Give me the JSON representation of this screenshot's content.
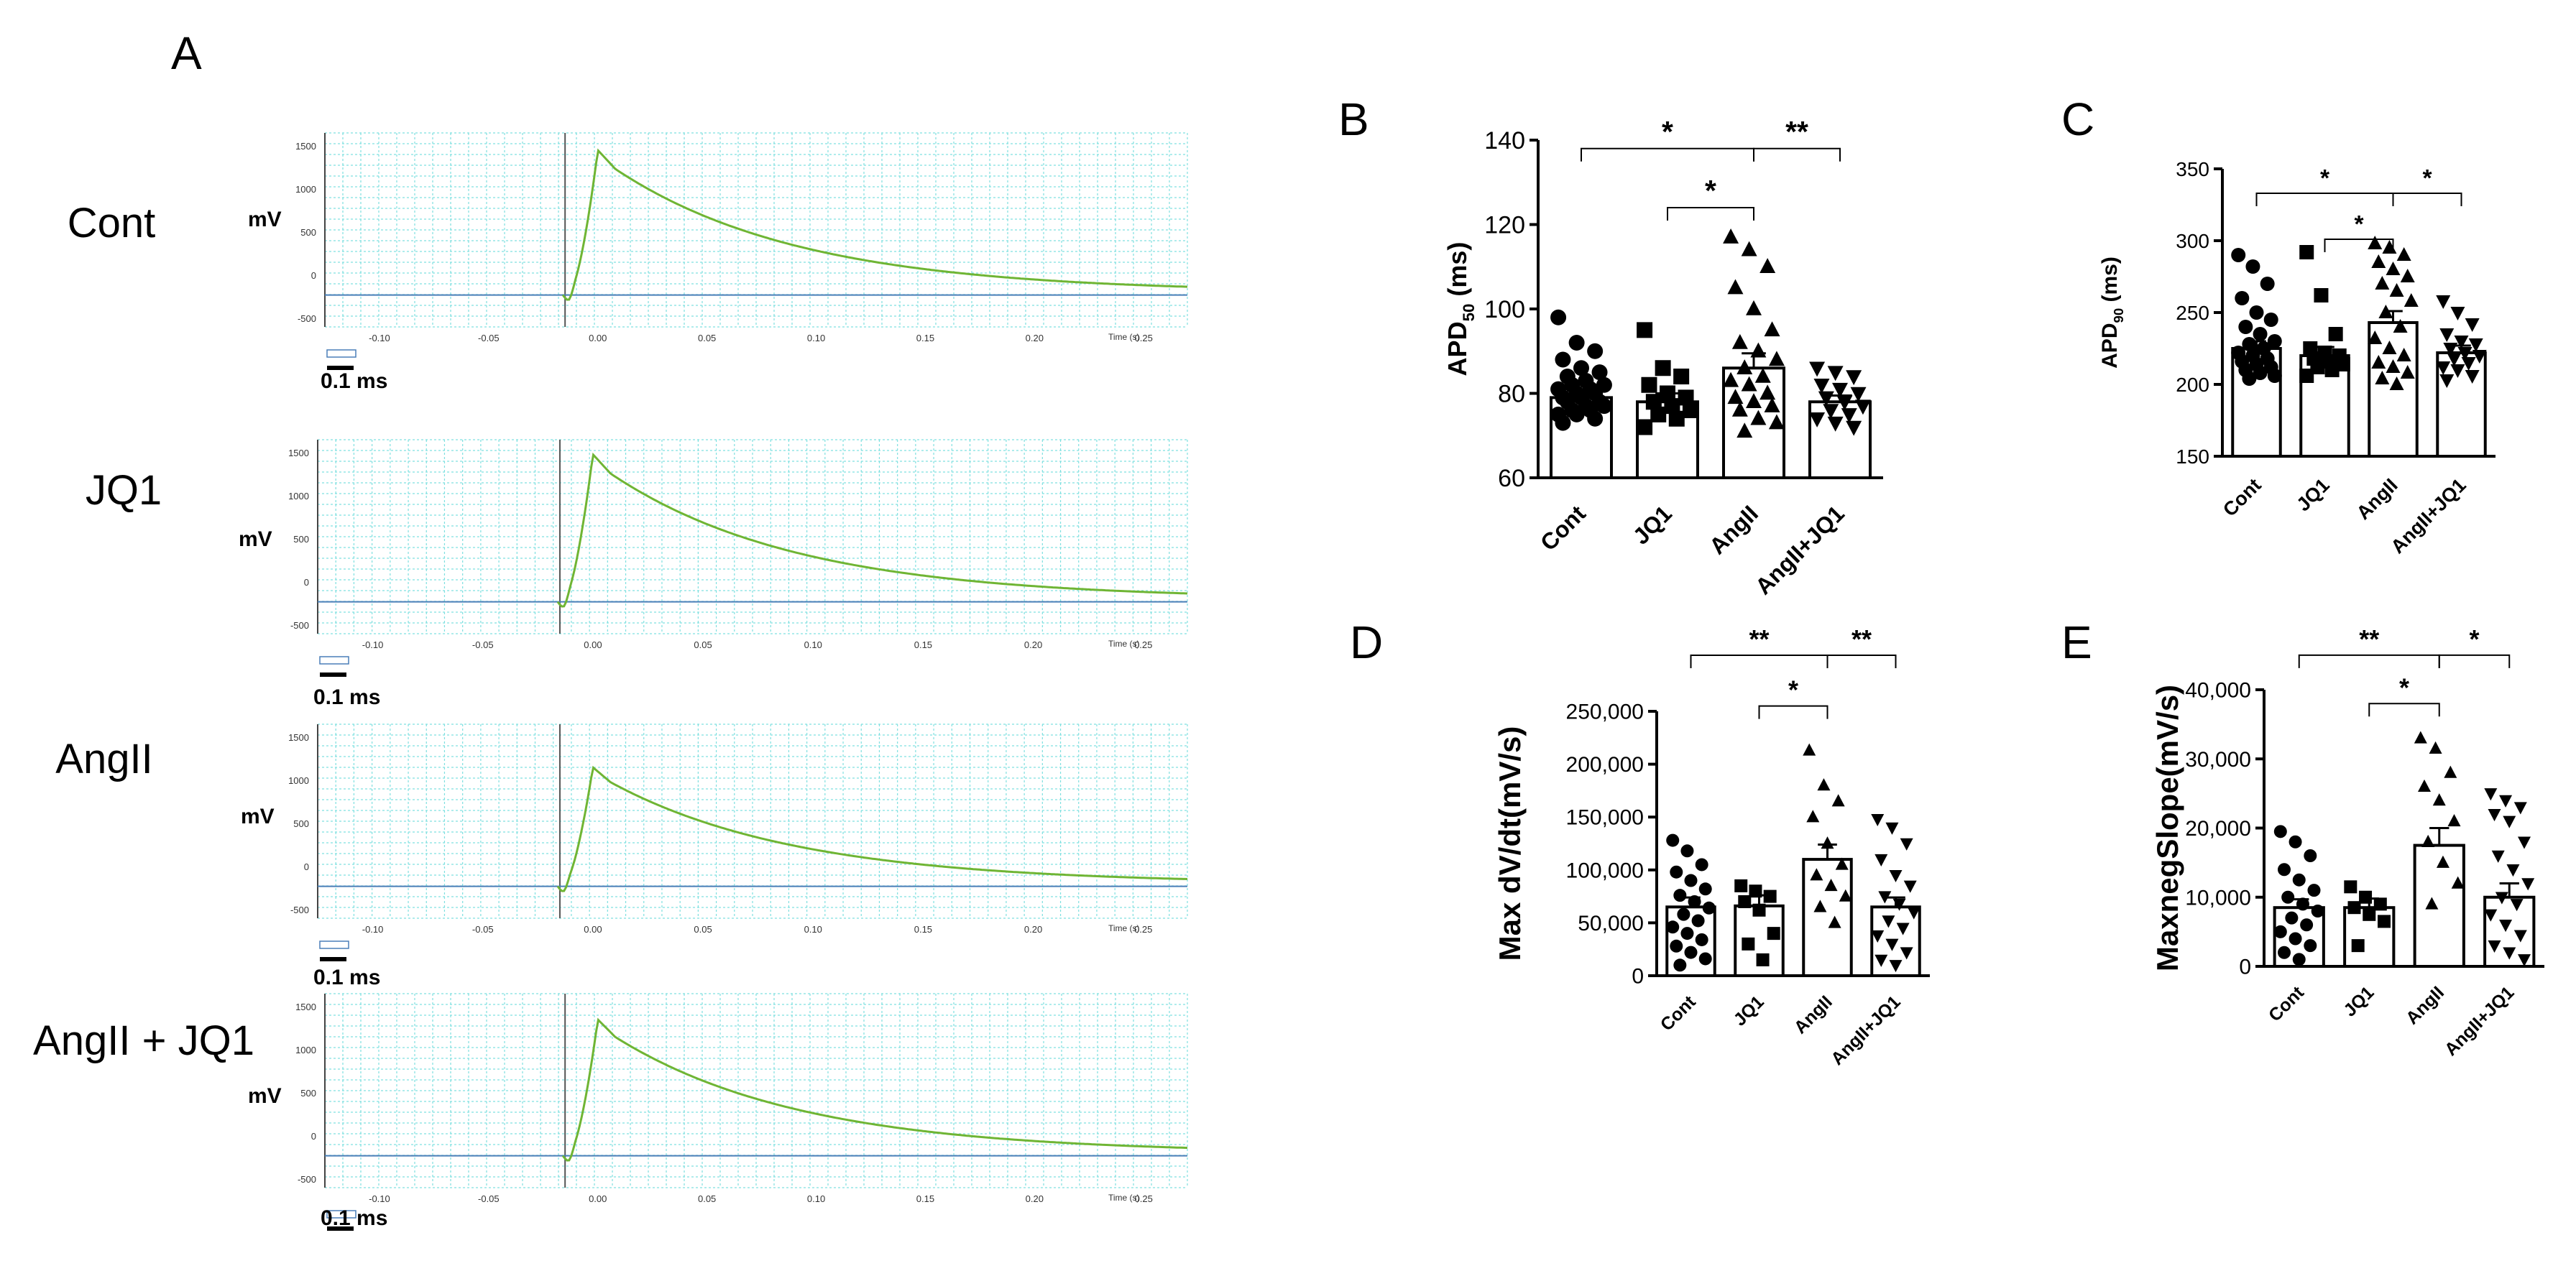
{
  "panels": {
    "A": "A",
    "B": "B",
    "C": "C",
    "D": "D",
    "E": "E"
  },
  "traces": [
    {
      "label": "Cont",
      "ylabel": "mV",
      "yticks": [
        "1500",
        "1000",
        "500",
        "0",
        "-500"
      ],
      "peak": 1450,
      "scale": "0.1 ms"
    },
    {
      "label": "JQ1",
      "ylabel": "mV",
      "yticks": [
        "1500",
        "1000",
        "500",
        "0",
        "-500"
      ],
      "peak": 1480,
      "scale": "0.1 ms"
    },
    {
      "label": "AngII",
      "ylabel": "mV",
      "yticks": [
        "1500",
        "1000",
        "500",
        "0",
        "-500"
      ],
      "peak": 1150,
      "scale": "0.1 ms"
    },
    {
      "label": "AngII + JQ1",
      "ylabel": "mV",
      "yticks": [
        "1500",
        "1000",
        "500",
        "0",
        "-500"
      ],
      "peak": 1350,
      "scale": "0.1 ms"
    }
  ],
  "trace_axis": {
    "xticks": [
      "-0.10",
      "-0.05",
      "0.00",
      "0.05",
      "0.10",
      "0.15",
      "0.20",
      "0.25"
    ],
    "xtick_values": [
      -0.1,
      -0.05,
      0.0,
      0.05,
      0.1,
      0.15,
      0.2,
      0.25
    ],
    "xlim": [
      -0.125,
      0.27
    ],
    "ylim": [
      -600,
      1650
    ],
    "xlabel": "Time (s)",
    "baseline": -230,
    "trace_color": "#6fb534",
    "baseline_color": "#4a7fb8",
    "grid_color": "#7fe0e0"
  },
  "chart_data": [
    {
      "panel": "B",
      "type": "bar",
      "categories": [
        "Cont",
        "JQ1",
        "AngII",
        "AngII+JQ1"
      ],
      "values": [
        79,
        78,
        86,
        78
      ],
      "errors": [
        1.5,
        2,
        3.5,
        1.5
      ],
      "ylabel_main": "APD",
      "ylabel_sub": "50",
      "ylabel_tail": " (ms)",
      "ylim": [
        60,
        140
      ],
      "yticks": [
        "60",
        "80",
        "100",
        "120",
        "140"
      ],
      "ytick_values": [
        60,
        80,
        100,
        120,
        140
      ],
      "markers": [
        "circle",
        "square",
        "triangle",
        "tri-down"
      ],
      "points": [
        [
          98,
          92,
          90,
          88,
          86,
          85,
          84,
          83,
          82,
          82,
          81,
          81,
          80,
          80,
          79,
          79,
          78,
          78,
          77,
          77,
          76,
          76,
          75,
          75,
          74,
          73
        ],
        [
          95,
          86,
          84,
          82,
          80,
          79,
          78,
          77,
          76,
          75,
          74,
          72
        ],
        [
          117,
          114,
          110,
          105,
          100,
          95,
          92,
          90,
          88,
          86,
          84,
          83,
          82,
          80,
          79,
          78,
          77,
          76,
          74,
          73,
          71
        ],
        [
          86,
          85,
          84,
          82,
          81,
          80,
          79,
          78,
          77,
          76,
          75,
          74,
          73,
          72
        ]
      ],
      "brackets": [
        {
          "from": 0,
          "to": 2,
          "level": 138,
          "label": "*"
        },
        {
          "from": 2,
          "to": 3,
          "level": 138,
          "label": "**"
        },
        {
          "from": 1,
          "to": 2,
          "level": 124,
          "label": "*"
        }
      ]
    },
    {
      "panel": "C",
      "type": "bar",
      "categories": [
        "Cont",
        "JQ1",
        "AngII",
        "AngII+JQ1"
      ],
      "values": [
        225,
        220,
        243,
        222
      ],
      "errors": [
        5,
        6,
        8,
        5
      ],
      "ylabel_main": "APD",
      "ylabel_sub": "90",
      "ylabel_tail": " (ms)",
      "ylim": [
        150,
        350
      ],
      "yticks": [
        "150",
        "200",
        "250",
        "300",
        "350"
      ],
      "ytick_values": [
        150,
        200,
        250,
        300,
        350
      ],
      "markers": [
        "circle",
        "square",
        "triangle",
        "tri-down"
      ],
      "points": [
        [
          290,
          282,
          270,
          260,
          250,
          245,
          240,
          235,
          230,
          228,
          225,
          222,
          220,
          218,
          216,
          214,
          212,
          210,
          208,
          206,
          204
        ],
        [
          292,
          262,
          235,
          225,
          222,
          220,
          218,
          216,
          214,
          212,
          210,
          206
        ],
        [
          298,
          295,
          290,
          285,
          280,
          275,
          270,
          265,
          258,
          250,
          240,
          232,
          225,
          220,
          215,
          212,
          208,
          204,
          200
        ],
        [
          258,
          250,
          242,
          235,
          230,
          228,
          225,
          222,
          220,
          218,
          215,
          212,
          210,
          206,
          203
        ]
      ],
      "brackets": [
        {
          "from": 0,
          "to": 2,
          "level": 333,
          "label": "*"
        },
        {
          "from": 2,
          "to": 3,
          "level": 333,
          "label": "*"
        },
        {
          "from": 1,
          "to": 2,
          "level": 301,
          "label": "*"
        }
      ]
    },
    {
      "panel": "D",
      "type": "bar",
      "categories": [
        "Cont",
        "JQ1",
        "AngII",
        "AngII+JQ1"
      ],
      "values": [
        65000,
        66000,
        110000,
        65000
      ],
      "errors": [
        9000,
        10000,
        14000,
        9000
      ],
      "ylabel_main": "Max dV/dt(mV/s)",
      "ylabel_sub": "",
      "ylabel_tail": "",
      "ylim": [
        0,
        250000
      ],
      "yticks": [
        "0",
        "50,000",
        "100,000",
        "150,000",
        "200,000",
        "250,000"
      ],
      "ytick_values": [
        0,
        50000,
        100000,
        150000,
        200000,
        250000
      ],
      "markers": [
        "circle",
        "square",
        "triangle",
        "tri-down"
      ],
      "points": [
        [
          128000,
          118000,
          105000,
          98000,
          90000,
          82000,
          76000,
          70000,
          64000,
          58000,
          52000,
          46000,
          40000,
          34000,
          28000,
          22000,
          16000,
          10000
        ],
        [
          85000,
          80000,
          75000,
          70000,
          62000,
          40000,
          30000,
          15000
        ],
        [
          213000,
          180000,
          165000,
          150000,
          125000,
          105000,
          95000,
          85000,
          75000,
          65000,
          50000
        ],
        [
          148000,
          140000,
          125000,
          110000,
          95000,
          85000,
          75000,
          68000,
          60000,
          52000,
          45000,
          38000,
          30000,
          22000,
          15000,
          10000
        ]
      ],
      "brackets": [
        {
          "from": 0,
          "to": 2,
          "level": 303000,
          "label": "**"
        },
        {
          "from": 2,
          "to": 3,
          "level": 303000,
          "label": "**"
        },
        {
          "from": 1,
          "to": 2,
          "level": 255000,
          "label": "*"
        }
      ]
    },
    {
      "panel": "E",
      "type": "bar",
      "categories": [
        "Cont",
        "JQ1",
        "AngII",
        "AngII+JQ1"
      ],
      "values": [
        8500,
        8500,
        17500,
        10000
      ],
      "errors": [
        1200,
        1300,
        2500,
        2000
      ],
      "ylabel_main": "MaxnegSlope(mV/s)",
      "ylabel_sub": "",
      "ylabel_tail": "",
      "ylim": [
        0,
        40000
      ],
      "yticks": [
        "0",
        "10,000",
        "20,000",
        "30,000",
        "40,000"
      ],
      "ytick_values": [
        0,
        10000,
        20000,
        30000,
        40000
      ],
      "markers": [
        "circle",
        "square",
        "triangle",
        "tri-down"
      ],
      "points": [
        [
          19500,
          18000,
          16000,
          14000,
          12500,
          11000,
          10000,
          9000,
          8000,
          7000,
          6000,
          5000,
          4000,
          3000,
          2000,
          1000
        ],
        [
          11500,
          10000,
          9000,
          8500,
          7500,
          6500,
          3000
        ],
        [
          33000,
          31500,
          28000,
          26000,
          24000,
          21000,
          18000,
          15000,
          12000,
          9000
        ],
        [
          25000,
          24000,
          23000,
          22000,
          21000,
          18000,
          16000,
          14000,
          12000,
          10000,
          9000,
          7500,
          6000,
          4500,
          3000,
          2000,
          1000
        ]
      ],
      "brackets": [
        {
          "from": 0,
          "to": 2,
          "level": 45000,
          "label": "**"
        },
        {
          "from": 2,
          "to": 3,
          "level": 45000,
          "label": "*"
        },
        {
          "from": 1,
          "to": 2,
          "level": 38000,
          "label": "*"
        }
      ]
    }
  ]
}
